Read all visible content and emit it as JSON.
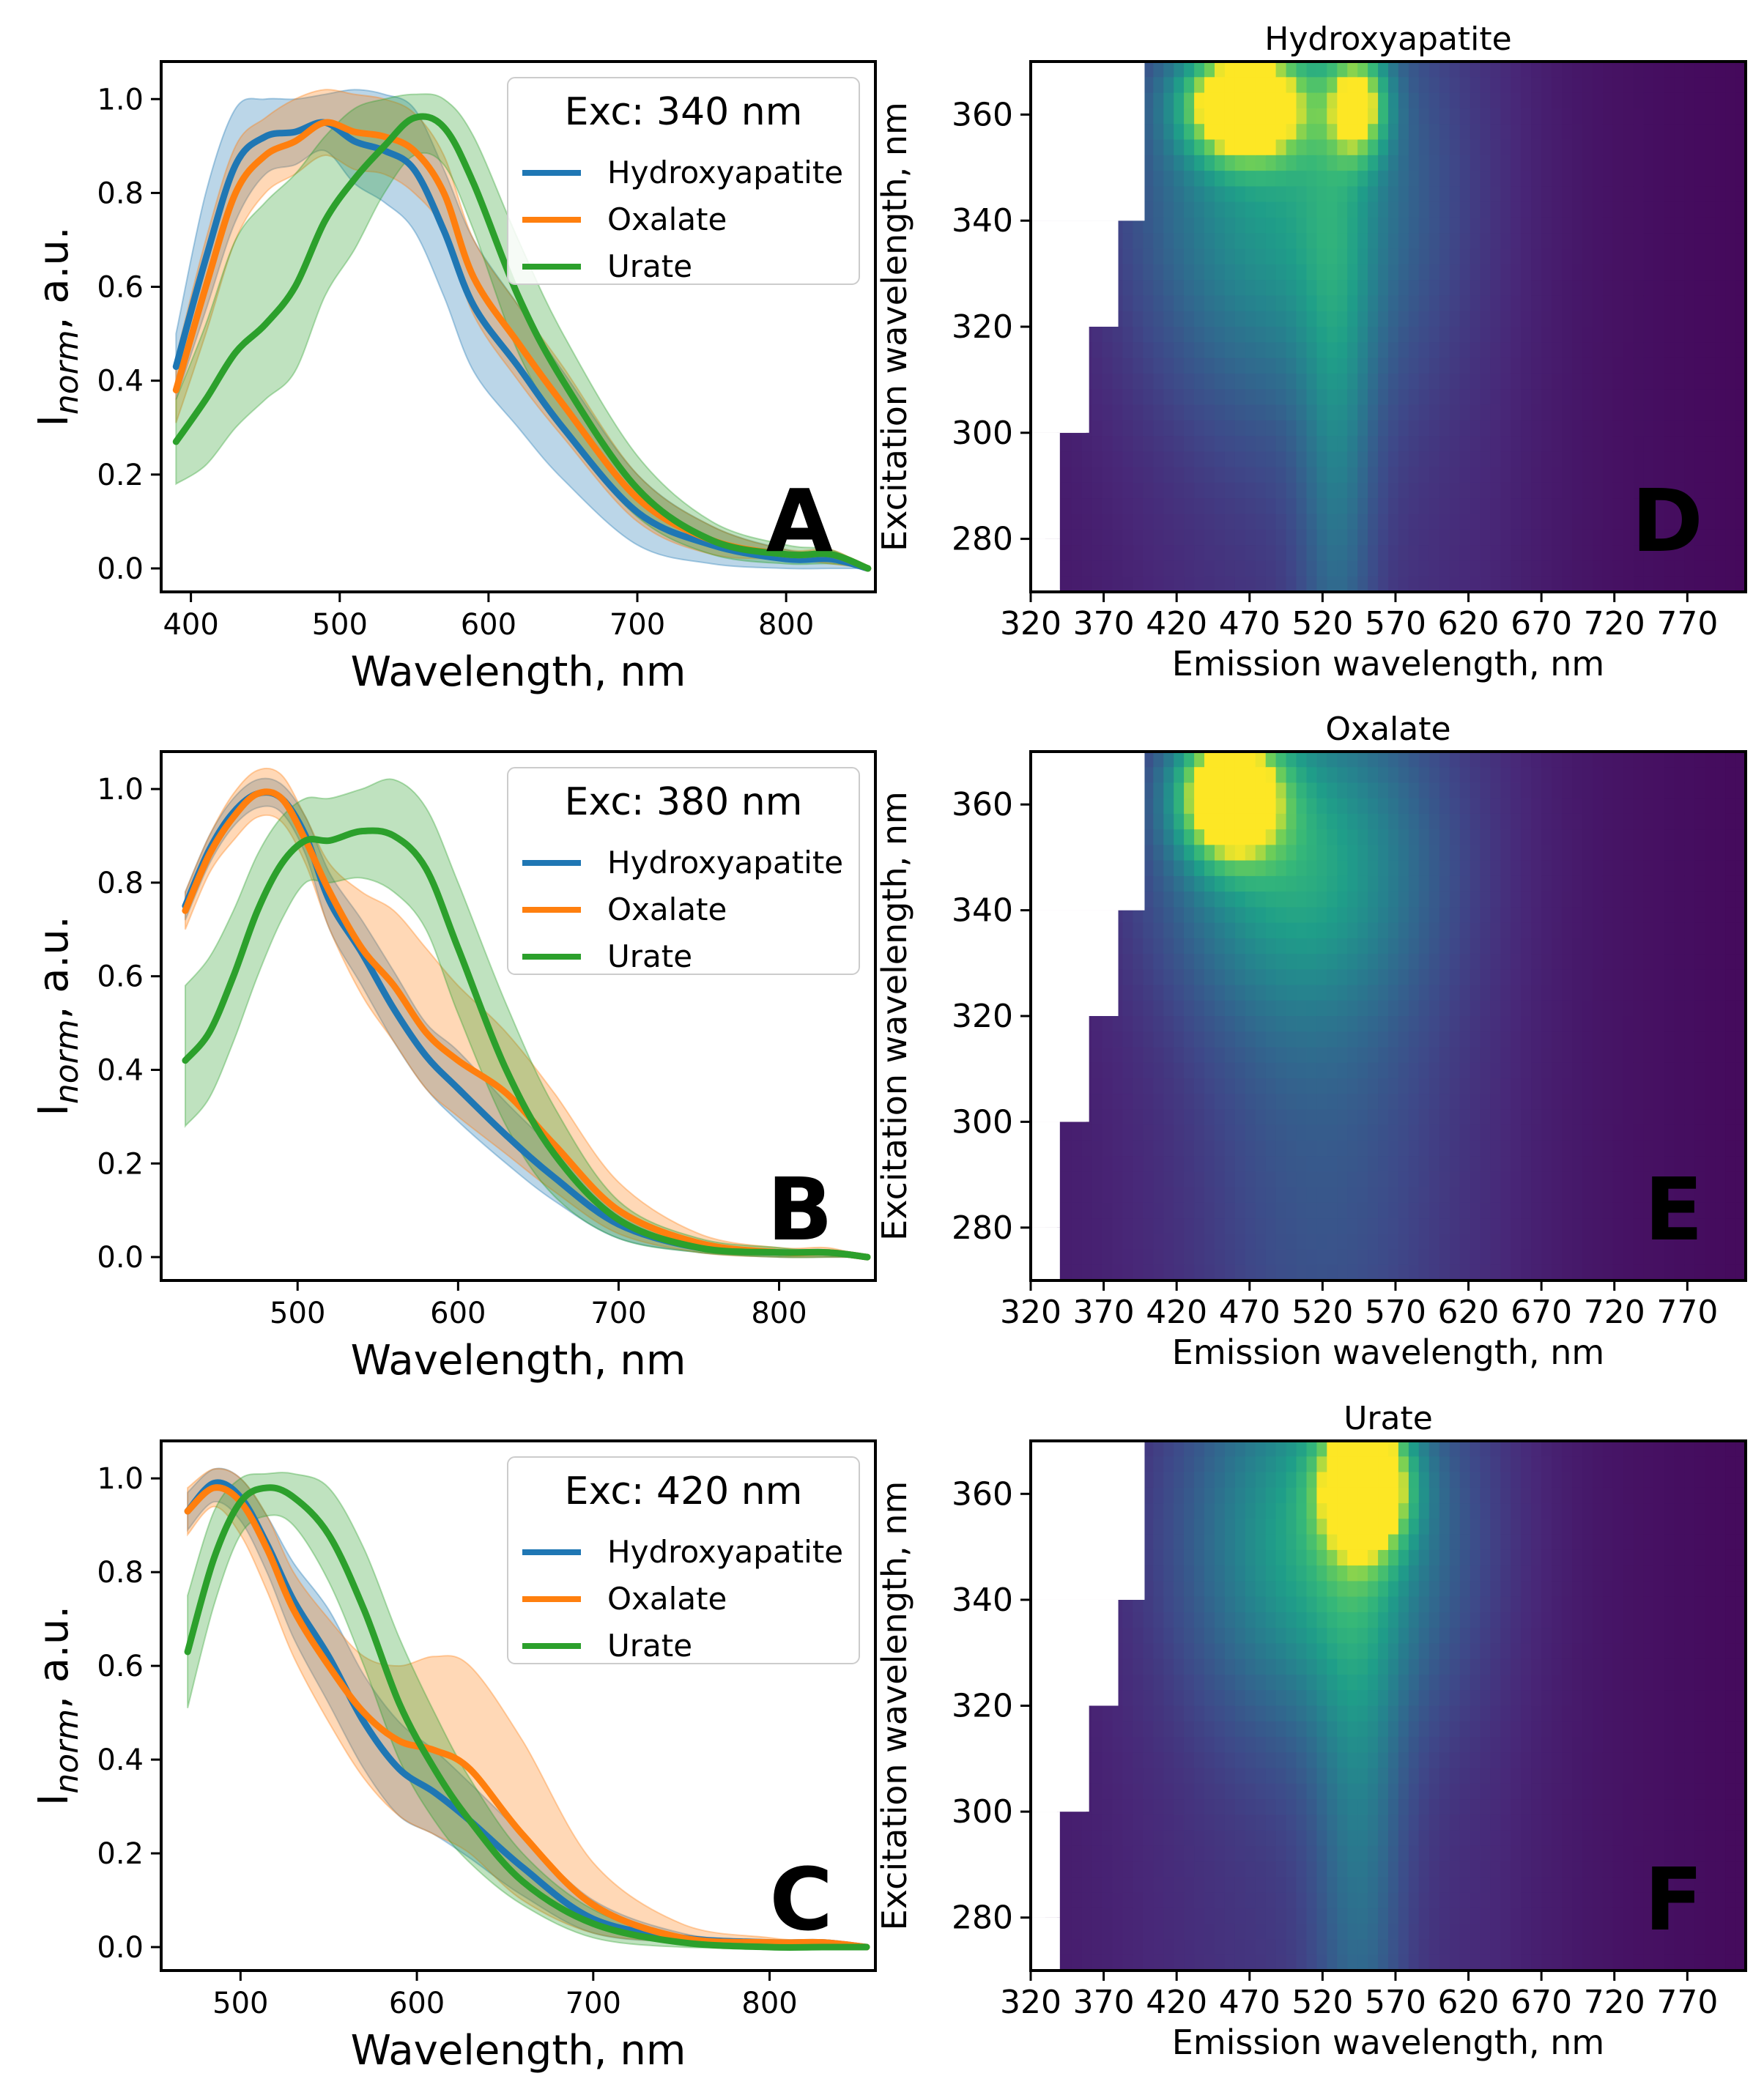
{
  "colors": {
    "Hydroxyapatite": "#1f77b4",
    "Oxalate": "#ff7f0e",
    "Urate": "#2ca02c",
    "heat_low": "#440154",
    "heat_mid": "#21918c",
    "heat_high": "#fde725",
    "letter_on_dark": "#ffffff"
  },
  "chart_data": [
    {
      "panel": "A",
      "type": "line",
      "xlabel": "Wavelength, nm",
      "ylabel": "I_norm, a.u.",
      "ylabel_main": "I",
      "ylabel_sub": "norm",
      "ylabel_rest": ", a.u.",
      "xlim": [
        380,
        860
      ],
      "ylim": [
        -0.05,
        1.08
      ],
      "xticks": [
        400,
        500,
        600,
        700,
        800
      ],
      "yticks": [
        0.0,
        0.2,
        0.4,
        0.6,
        0.8,
        1.0
      ],
      "ytick_labels": [
        "0.0",
        "0.2",
        "0.4",
        "0.6",
        "0.8",
        "1.0"
      ],
      "legend": {
        "title": "Exc: 340 nm",
        "position": "top-right"
      },
      "series": [
        {
          "name": "Hydroxyapatite",
          "x": [
            390,
            410,
            430,
            450,
            470,
            490,
            510,
            530,
            550,
            570,
            590,
            620,
            650,
            700,
            750,
            800,
            830,
            855
          ],
          "y": [
            0.43,
            0.66,
            0.86,
            0.92,
            0.93,
            0.95,
            0.91,
            0.89,
            0.85,
            0.72,
            0.56,
            0.43,
            0.3,
            0.12,
            0.05,
            0.02,
            0.02,
            0.0
          ],
          "upper": [
            0.5,
            0.8,
            0.98,
            1.0,
            1.0,
            1.01,
            1.02,
            1.01,
            0.98,
            0.85,
            0.7,
            0.56,
            0.42,
            0.2,
            0.09,
            0.04,
            0.03,
            0.0
          ],
          "lower": [
            0.36,
            0.55,
            0.74,
            0.84,
            0.86,
            0.89,
            0.82,
            0.78,
            0.72,
            0.58,
            0.42,
            0.3,
            0.19,
            0.05,
            0.01,
            0.0,
            0.0,
            0.0
          ]
        },
        {
          "name": "Oxalate",
          "x": [
            390,
            410,
            430,
            450,
            470,
            490,
            510,
            530,
            550,
            570,
            590,
            620,
            650,
            700,
            750,
            800,
            830,
            855
          ],
          "y": [
            0.38,
            0.6,
            0.8,
            0.88,
            0.91,
            0.95,
            0.93,
            0.92,
            0.89,
            0.8,
            0.62,
            0.48,
            0.35,
            0.15,
            0.06,
            0.03,
            0.03,
            0.0
          ],
          "upper": [
            0.45,
            0.7,
            0.9,
            0.96,
            1.0,
            1.02,
            1.01,
            1.0,
            0.97,
            0.88,
            0.7,
            0.56,
            0.43,
            0.2,
            0.09,
            0.04,
            0.04,
            0.0
          ],
          "lower": [
            0.31,
            0.5,
            0.7,
            0.8,
            0.84,
            0.88,
            0.85,
            0.84,
            0.8,
            0.72,
            0.54,
            0.4,
            0.28,
            0.1,
            0.03,
            0.02,
            0.01,
            0.0
          ]
        },
        {
          "name": "Urate",
          "x": [
            390,
            410,
            430,
            450,
            470,
            490,
            510,
            530,
            550,
            570,
            590,
            620,
            650,
            700,
            750,
            800,
            830,
            855
          ],
          "y": [
            0.27,
            0.36,
            0.46,
            0.52,
            0.6,
            0.74,
            0.83,
            0.9,
            0.96,
            0.94,
            0.82,
            0.58,
            0.4,
            0.17,
            0.06,
            0.03,
            0.03,
            0.0
          ],
          "upper": [
            0.36,
            0.52,
            0.7,
            0.78,
            0.84,
            0.92,
            0.98,
            1.0,
            1.01,
            1.0,
            0.92,
            0.7,
            0.5,
            0.24,
            0.1,
            0.05,
            0.04,
            0.0
          ],
          "lower": [
            0.18,
            0.22,
            0.3,
            0.36,
            0.42,
            0.58,
            0.68,
            0.8,
            0.88,
            0.86,
            0.72,
            0.46,
            0.3,
            0.11,
            0.03,
            0.01,
            0.01,
            0.0
          ]
        }
      ]
    },
    {
      "panel": "B",
      "type": "line",
      "xlabel": "Wavelength, nm",
      "ylabel": "I_norm, a.u.",
      "ylabel_main": "I",
      "ylabel_sub": "norm",
      "ylabel_rest": ", a.u.",
      "xlim": [
        415,
        860
      ],
      "ylim": [
        -0.05,
        1.08
      ],
      "xticks": [
        500,
        600,
        700,
        800
      ],
      "yticks": [
        0.0,
        0.2,
        0.4,
        0.6,
        0.8,
        1.0
      ],
      "ytick_labels": [
        "0.0",
        "0.2",
        "0.4",
        "0.6",
        "0.8",
        "1.0"
      ],
      "legend": {
        "title": "Exc: 380 nm",
        "position": "top-right"
      },
      "series": [
        {
          "name": "Hydroxyapatite",
          "x": [
            430,
            445,
            460,
            475,
            490,
            505,
            520,
            540,
            560,
            580,
            600,
            630,
            660,
            700,
            750,
            800,
            830,
            855
          ],
          "y": [
            0.75,
            0.87,
            0.95,
            0.99,
            0.98,
            0.9,
            0.76,
            0.65,
            0.53,
            0.43,
            0.36,
            0.26,
            0.17,
            0.07,
            0.02,
            0.01,
            0.01,
            0.0
          ],
          "upper": [
            0.78,
            0.9,
            0.98,
            1.02,
            1.01,
            0.94,
            0.82,
            0.72,
            0.61,
            0.5,
            0.44,
            0.33,
            0.23,
            0.1,
            0.03,
            0.01,
            0.01,
            0.0
          ],
          "lower": [
            0.72,
            0.84,
            0.92,
            0.96,
            0.95,
            0.86,
            0.7,
            0.58,
            0.46,
            0.36,
            0.29,
            0.2,
            0.12,
            0.04,
            0.01,
            0.0,
            0.0,
            0.0
          ]
        },
        {
          "name": "Oxalate",
          "x": [
            430,
            445,
            460,
            475,
            490,
            505,
            520,
            540,
            560,
            580,
            600,
            630,
            660,
            700,
            750,
            800,
            830,
            855
          ],
          "y": [
            0.74,
            0.86,
            0.94,
            0.99,
            0.98,
            0.89,
            0.78,
            0.66,
            0.58,
            0.48,
            0.42,
            0.35,
            0.24,
            0.1,
            0.03,
            0.01,
            0.01,
            0.0
          ],
          "upper": [
            0.78,
            0.9,
            0.99,
            1.04,
            1.03,
            0.94,
            0.84,
            0.78,
            0.74,
            0.66,
            0.58,
            0.48,
            0.35,
            0.16,
            0.05,
            0.02,
            0.02,
            0.0
          ],
          "lower": [
            0.7,
            0.82,
            0.89,
            0.94,
            0.93,
            0.84,
            0.7,
            0.56,
            0.46,
            0.36,
            0.3,
            0.22,
            0.14,
            0.05,
            0.01,
            0.0,
            0.0,
            0.0
          ]
        },
        {
          "name": "Urate",
          "x": [
            430,
            445,
            460,
            475,
            490,
            505,
            520,
            540,
            560,
            580,
            600,
            630,
            660,
            700,
            750,
            800,
            830,
            855
          ],
          "y": [
            0.42,
            0.48,
            0.6,
            0.74,
            0.84,
            0.89,
            0.89,
            0.91,
            0.9,
            0.83,
            0.66,
            0.4,
            0.22,
            0.08,
            0.02,
            0.01,
            0.01,
            0.0
          ],
          "upper": [
            0.58,
            0.64,
            0.74,
            0.86,
            0.94,
            0.98,
            0.98,
            1.0,
            1.02,
            0.96,
            0.8,
            0.54,
            0.32,
            0.12,
            0.04,
            0.02,
            0.01,
            0.0
          ],
          "lower": [
            0.28,
            0.34,
            0.46,
            0.6,
            0.72,
            0.8,
            0.8,
            0.81,
            0.78,
            0.7,
            0.52,
            0.28,
            0.13,
            0.04,
            0.01,
            0.0,
            0.0,
            0.0
          ]
        }
      ]
    },
    {
      "panel": "C",
      "type": "line",
      "xlabel": "Wavelength, nm",
      "ylabel": "I_norm, a.u.",
      "ylabel_main": "I",
      "ylabel_sub": "norm",
      "ylabel_rest": ", a.u.",
      "xlim": [
        455,
        860
      ],
      "ylim": [
        -0.05,
        1.08
      ],
      "xticks": [
        500,
        600,
        700,
        800
      ],
      "yticks": [
        0.0,
        0.2,
        0.4,
        0.6,
        0.8,
        1.0
      ],
      "ytick_labels": [
        "0.0",
        "0.2",
        "0.4",
        "0.6",
        "0.8",
        "1.0"
      ],
      "legend": {
        "title": "Exc: 420 nm",
        "position": "top-right"
      },
      "series": [
        {
          "name": "Hydroxyapatite",
          "x": [
            470,
            485,
            500,
            515,
            530,
            550,
            570,
            590,
            610,
            630,
            660,
            700,
            750,
            800,
            830,
            855
          ],
          "y": [
            0.93,
            0.99,
            0.96,
            0.86,
            0.74,
            0.62,
            0.48,
            0.38,
            0.33,
            0.27,
            0.17,
            0.06,
            0.02,
            0.01,
            0.01,
            0.0
          ],
          "upper": [
            0.97,
            1.02,
            1.0,
            0.92,
            0.82,
            0.72,
            0.58,
            0.48,
            0.42,
            0.35,
            0.24,
            0.1,
            0.03,
            0.01,
            0.01,
            0.0
          ],
          "lower": [
            0.89,
            0.95,
            0.91,
            0.8,
            0.66,
            0.52,
            0.38,
            0.28,
            0.24,
            0.19,
            0.11,
            0.03,
            0.01,
            0.0,
            0.0,
            0.0
          ]
        },
        {
          "name": "Oxalate",
          "x": [
            470,
            485,
            500,
            515,
            530,
            550,
            570,
            590,
            610,
            630,
            660,
            700,
            750,
            800,
            830,
            855
          ],
          "y": [
            0.93,
            0.98,
            0.95,
            0.85,
            0.72,
            0.6,
            0.5,
            0.44,
            0.42,
            0.38,
            0.24,
            0.09,
            0.02,
            0.01,
            0.01,
            0.0
          ],
          "upper": [
            0.98,
            1.02,
            1.0,
            0.92,
            0.8,
            0.7,
            0.62,
            0.6,
            0.62,
            0.6,
            0.44,
            0.18,
            0.05,
            0.02,
            0.01,
            0.0
          ],
          "lower": [
            0.88,
            0.94,
            0.88,
            0.76,
            0.62,
            0.48,
            0.36,
            0.28,
            0.24,
            0.2,
            0.1,
            0.03,
            0.01,
            0.0,
            0.0,
            0.0
          ]
        },
        {
          "name": "Urate",
          "x": [
            470,
            485,
            500,
            515,
            530,
            550,
            570,
            590,
            610,
            630,
            660,
            700,
            750,
            800,
            830,
            855
          ],
          "y": [
            0.63,
            0.83,
            0.95,
            0.98,
            0.96,
            0.88,
            0.72,
            0.52,
            0.38,
            0.27,
            0.14,
            0.05,
            0.01,
            0.0,
            0.0,
            0.0
          ],
          "upper": [
            0.75,
            0.93,
            1.0,
            1.01,
            1.01,
            0.98,
            0.85,
            0.66,
            0.5,
            0.36,
            0.2,
            0.08,
            0.02,
            0.01,
            0.0,
            0.0
          ],
          "lower": [
            0.51,
            0.73,
            0.88,
            0.92,
            0.9,
            0.78,
            0.6,
            0.4,
            0.27,
            0.18,
            0.09,
            0.02,
            0.0,
            0.0,
            0.0,
            0.0
          ]
        }
      ]
    },
    {
      "panel": "D",
      "type": "heatmap",
      "title": "Hydroxyapatite",
      "xlabel": "Emission wavelength, nm",
      "ylabel": "Excitation wavelength, nm",
      "xlim": [
        320,
        810
      ],
      "ylim": [
        270,
        370
      ],
      "xticks": [
        320,
        370,
        420,
        470,
        520,
        570,
        620,
        670,
        720,
        770
      ],
      "yticks": [
        280,
        300,
        320,
        340,
        360
      ],
      "masked_steps": [
        {
          "exc_below": 280,
          "em_upto": 340
        },
        {
          "exc_below": 300,
          "em_upto": 340
        },
        {
          "exc_below": 320,
          "em_upto": 360
        },
        {
          "exc_below": 340,
          "em_upto": 380
        },
        {
          "exc_below": 370,
          "em_upto": 398
        }
      ],
      "hotspots": [
        {
          "em": 465,
          "exc": 362,
          "sigma_em": 40,
          "sigma_exc": 10,
          "value": 1.0
        },
        {
          "em": 545,
          "exc": 362,
          "sigma_em": 20,
          "sigma_exc": 10,
          "value": 0.65
        },
        {
          "em": 490,
          "exc": 345,
          "sigma_em": 100,
          "sigma_exc": 40,
          "value": 0.45
        },
        {
          "em": 530,
          "exc": 300,
          "sigma_em": 25,
          "sigma_exc": 60,
          "value": 0.25
        }
      ],
      "base_value": 0.06
    },
    {
      "panel": "E",
      "type": "heatmap",
      "title": "Oxalate",
      "xlabel": "Emission wavelength, nm",
      "ylabel": "Excitation wavelength, nm",
      "xlim": [
        320,
        810
      ],
      "ylim": [
        270,
        370
      ],
      "xticks": [
        320,
        370,
        420,
        470,
        520,
        570,
        620,
        670,
        720,
        770
      ],
      "yticks": [
        280,
        300,
        320,
        340,
        360
      ],
      "masked_steps": [
        {
          "exc_below": 280,
          "em_upto": 340
        },
        {
          "exc_below": 300,
          "em_upto": 340
        },
        {
          "exc_below": 320,
          "em_upto": 360
        },
        {
          "exc_below": 340,
          "em_upto": 380
        },
        {
          "exc_below": 370,
          "em_upto": 398
        }
      ],
      "hotspots": [
        {
          "em": 455,
          "exc": 362,
          "sigma_em": 35,
          "sigma_exc": 12,
          "value": 1.0
        },
        {
          "em": 500,
          "exc": 350,
          "sigma_em": 90,
          "sigma_exc": 30,
          "value": 0.45
        },
        {
          "em": 520,
          "exc": 300,
          "sigma_em": 80,
          "sigma_exc": 60,
          "value": 0.12
        }
      ],
      "base_value": 0.07
    },
    {
      "panel": "F",
      "type": "heatmap",
      "title": "Urate",
      "xlabel": "Emission wavelength, nm",
      "ylabel": "Excitation wavelength, nm",
      "xlim": [
        320,
        810
      ],
      "ylim": [
        270,
        370
      ],
      "xticks": [
        320,
        370,
        420,
        470,
        520,
        570,
        620,
        670,
        720,
        770
      ],
      "yticks": [
        280,
        300,
        320,
        340,
        360
      ],
      "masked_steps": [
        {
          "exc_below": 280,
          "em_upto": 340
        },
        {
          "exc_below": 300,
          "em_upto": 340
        },
        {
          "exc_below": 320,
          "em_upto": 360
        },
        {
          "exc_below": 340,
          "em_upto": 380
        },
        {
          "exc_below": 370,
          "em_upto": 398
        }
      ],
      "hotspots": [
        {
          "em": 550,
          "exc": 362,
          "sigma_em": 28,
          "sigma_exc": 12,
          "value": 1.0
        },
        {
          "em": 520,
          "exc": 352,
          "sigma_em": 90,
          "sigma_exc": 35,
          "value": 0.5
        },
        {
          "em": 545,
          "exc": 300,
          "sigma_em": 30,
          "sigma_exc": 60,
          "value": 0.25
        }
      ],
      "base_value": 0.07
    }
  ]
}
